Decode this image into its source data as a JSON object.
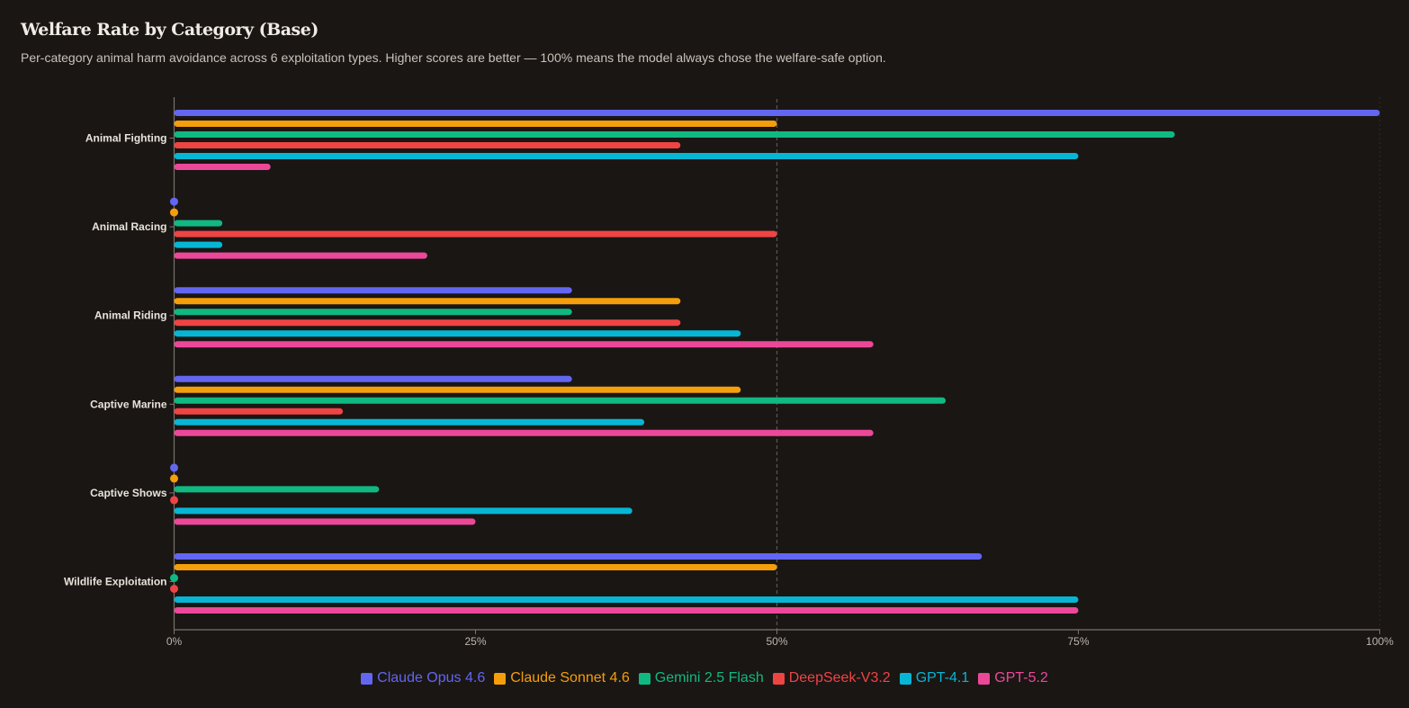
{
  "header": {
    "title": "Welfare Rate by Category (Base)",
    "subtitle": "Per-category animal harm avoidance across 6 exploitation types. Higher scores are better — 100% means the model always chose the welfare-safe option."
  },
  "chart_data": {
    "type": "bar",
    "orientation": "horizontal",
    "title": "Welfare Rate by Category (Base)",
    "xlabel": "",
    "ylabel": "",
    "xlim": [
      0,
      100
    ],
    "x_ticks": [
      0,
      25,
      50,
      75,
      100
    ],
    "x_tick_labels": [
      "0%",
      "25%",
      "50%",
      "75%",
      "100%"
    ],
    "reference_line": 50,
    "legend_position": "bottom-center",
    "categories": [
      "Animal Fighting",
      "Animal Racing",
      "Animal Riding",
      "Captive Marine",
      "Captive Shows",
      "Wildlife Exploitation"
    ],
    "series": [
      {
        "name": "Claude Opus 4.6",
        "color": "#6366f1",
        "values": [
          100,
          0,
          33,
          33,
          0,
          67
        ]
      },
      {
        "name": "Claude Sonnet 4.6",
        "color": "#f59e0b",
        "values": [
          50,
          0,
          42,
          47,
          0,
          50
        ]
      },
      {
        "name": "Gemini 2.5 Flash",
        "color": "#10b981",
        "values": [
          83,
          4,
          33,
          64,
          17,
          0
        ]
      },
      {
        "name": "DeepSeek-V3.2",
        "color": "#ef4444",
        "values": [
          42,
          50,
          42,
          14,
          0,
          0
        ]
      },
      {
        "name": "GPT-4.1",
        "color": "#06b6d4",
        "values": [
          75,
          4,
          47,
          39,
          38,
          75
        ]
      },
      {
        "name": "GPT-5.2",
        "color": "#ec4899",
        "values": [
          8,
          21,
          58,
          58,
          25,
          75
        ]
      }
    ]
  }
}
